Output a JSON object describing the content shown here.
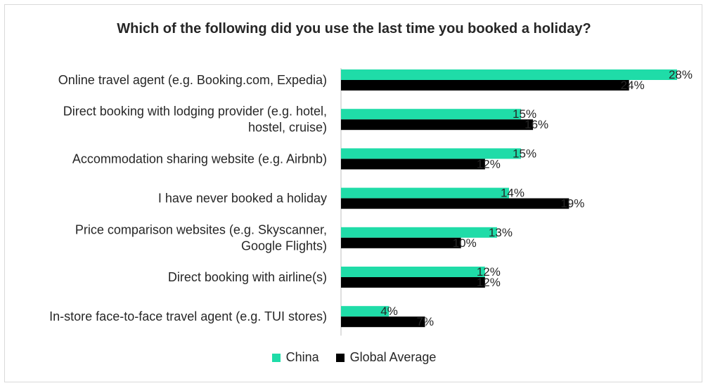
{
  "chart_data": {
    "type": "bar",
    "orientation": "horizontal",
    "title": "Which of the following did you use the last time you booked a holiday?",
    "categories": [
      [
        "Online travel agent (e.g. Booking.com, Expedia)"
      ],
      [
        "Direct booking with lodging provider (e.g. hotel,",
        "hostel, cruise)"
      ],
      [
        "Accommodation sharing website (e.g. Airbnb)"
      ],
      [
        "I have never booked a holiday"
      ],
      [
        "Price comparison websites (e.g. Skyscanner,",
        "Google Flights)"
      ],
      [
        "Direct booking with airline(s)"
      ],
      [
        "In-store face-to-face travel agent (e.g. TUI stores)"
      ]
    ],
    "series": [
      {
        "name": "China",
        "color": "#1fdca8",
        "values": [
          28,
          15,
          15,
          14,
          13,
          12,
          4
        ]
      },
      {
        "name": "Global Average",
        "color": "#000000",
        "values": [
          24,
          16,
          12,
          19,
          10,
          12,
          7
        ]
      }
    ],
    "value_suffix": "%",
    "xlim": [
      0,
      28
    ],
    "grid": false,
    "legend_position": "bottom"
  }
}
